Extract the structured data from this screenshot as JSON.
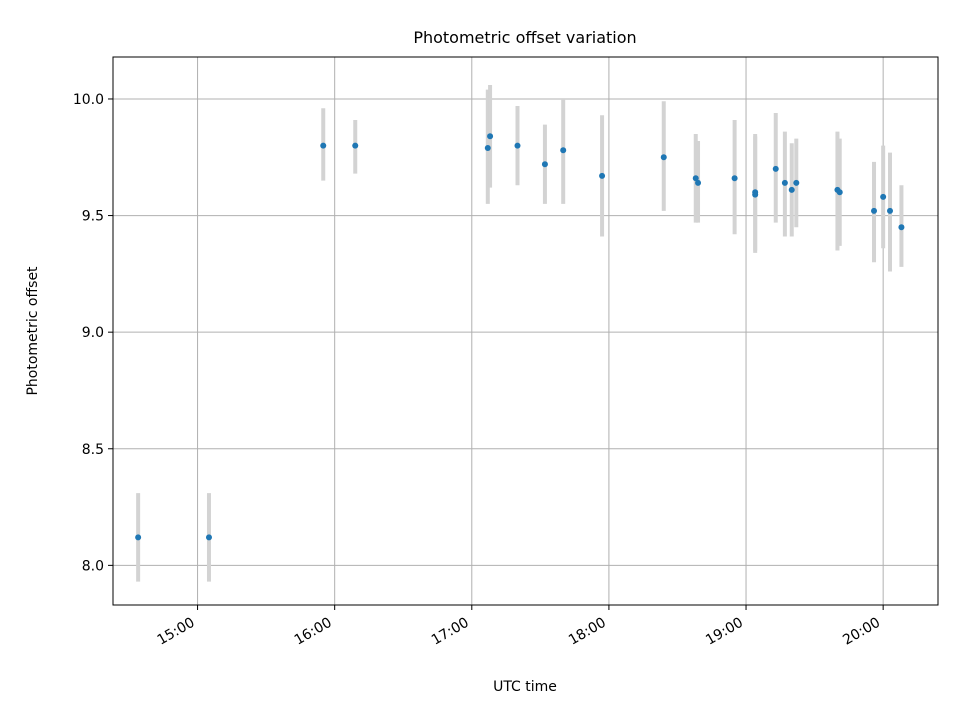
{
  "chart_data": {
    "type": "scatter",
    "title": "Photometric offset variation",
    "xlabel": "UTC time",
    "ylabel": "Photometric offset",
    "x_unit": "UTC time (HH:MM)",
    "xlim": [
      "14:23",
      "20:24"
    ],
    "ylim": [
      7.83,
      10.18
    ],
    "x_ticks": [
      "15:00",
      "16:00",
      "17:00",
      "18:00",
      "19:00",
      "20:00"
    ],
    "y_ticks": [
      "8.0",
      "8.5",
      "9.0",
      "9.5",
      "10.0"
    ],
    "grid": true,
    "legend": "none",
    "points": [
      {
        "x": "14:34",
        "y": 8.12,
        "ylow": 7.93,
        "yhigh": 8.31
      },
      {
        "x": "15:05",
        "y": 8.12,
        "ylow": 7.93,
        "yhigh": 8.31
      },
      {
        "x": "15:55",
        "y": 9.8,
        "ylow": 9.65,
        "yhigh": 9.96
      },
      {
        "x": "16:09",
        "y": 9.8,
        "ylow": 9.68,
        "yhigh": 9.91
      },
      {
        "x": "17:07",
        "y": 9.79,
        "ylow": 9.55,
        "yhigh": 10.04
      },
      {
        "x": "17:08",
        "y": 9.84,
        "ylow": 9.62,
        "yhigh": 10.06
      },
      {
        "x": "17:20",
        "y": 9.8,
        "ylow": 9.63,
        "yhigh": 9.97
      },
      {
        "x": "17:32",
        "y": 9.72,
        "ylow": 9.55,
        "yhigh": 9.89
      },
      {
        "x": "17:40",
        "y": 9.78,
        "ylow": 9.55,
        "yhigh": 10.0
      },
      {
        "x": "17:57",
        "y": 9.67,
        "ylow": 9.41,
        "yhigh": 9.93
      },
      {
        "x": "18:24",
        "y": 9.75,
        "ylow": 9.52,
        "yhigh": 9.99
      },
      {
        "x": "18:38",
        "y": 9.66,
        "ylow": 9.47,
        "yhigh": 9.85
      },
      {
        "x": "18:39",
        "y": 9.64,
        "ylow": 9.47,
        "yhigh": 9.82
      },
      {
        "x": "18:55",
        "y": 9.66,
        "ylow": 9.42,
        "yhigh": 9.91
      },
      {
        "x": "19:04",
        "y": 9.6,
        "ylow": 9.35,
        "yhigh": 9.85
      },
      {
        "x": "19:04",
        "y": 9.59,
        "ylow": 9.34,
        "yhigh": 9.84
      },
      {
        "x": "19:13",
        "y": 9.7,
        "ylow": 9.47,
        "yhigh": 9.94
      },
      {
        "x": "19:17",
        "y": 9.64,
        "ylow": 9.41,
        "yhigh": 9.86
      },
      {
        "x": "19:20",
        "y": 9.61,
        "ylow": 9.41,
        "yhigh": 9.81
      },
      {
        "x": "19:22",
        "y": 9.64,
        "ylow": 9.45,
        "yhigh": 9.83
      },
      {
        "x": "19:40",
        "y": 9.61,
        "ylow": 9.35,
        "yhigh": 9.86
      },
      {
        "x": "19:41",
        "y": 9.6,
        "ylow": 9.37,
        "yhigh": 9.83
      },
      {
        "x": "19:56",
        "y": 9.52,
        "ylow": 9.3,
        "yhigh": 9.73
      },
      {
        "x": "20:00",
        "y": 9.58,
        "ylow": 9.36,
        "yhigh": 9.8
      },
      {
        "x": "20:03",
        "y": 9.52,
        "ylow": 9.26,
        "yhigh": 9.77
      },
      {
        "x": "20:08",
        "y": 9.45,
        "ylow": 9.28,
        "yhigh": 9.63
      }
    ],
    "colors": {
      "marker": "#1f77b4",
      "errorbar": "#d3d3d3",
      "grid": "#b0b0b0",
      "axis": "#000000"
    }
  }
}
